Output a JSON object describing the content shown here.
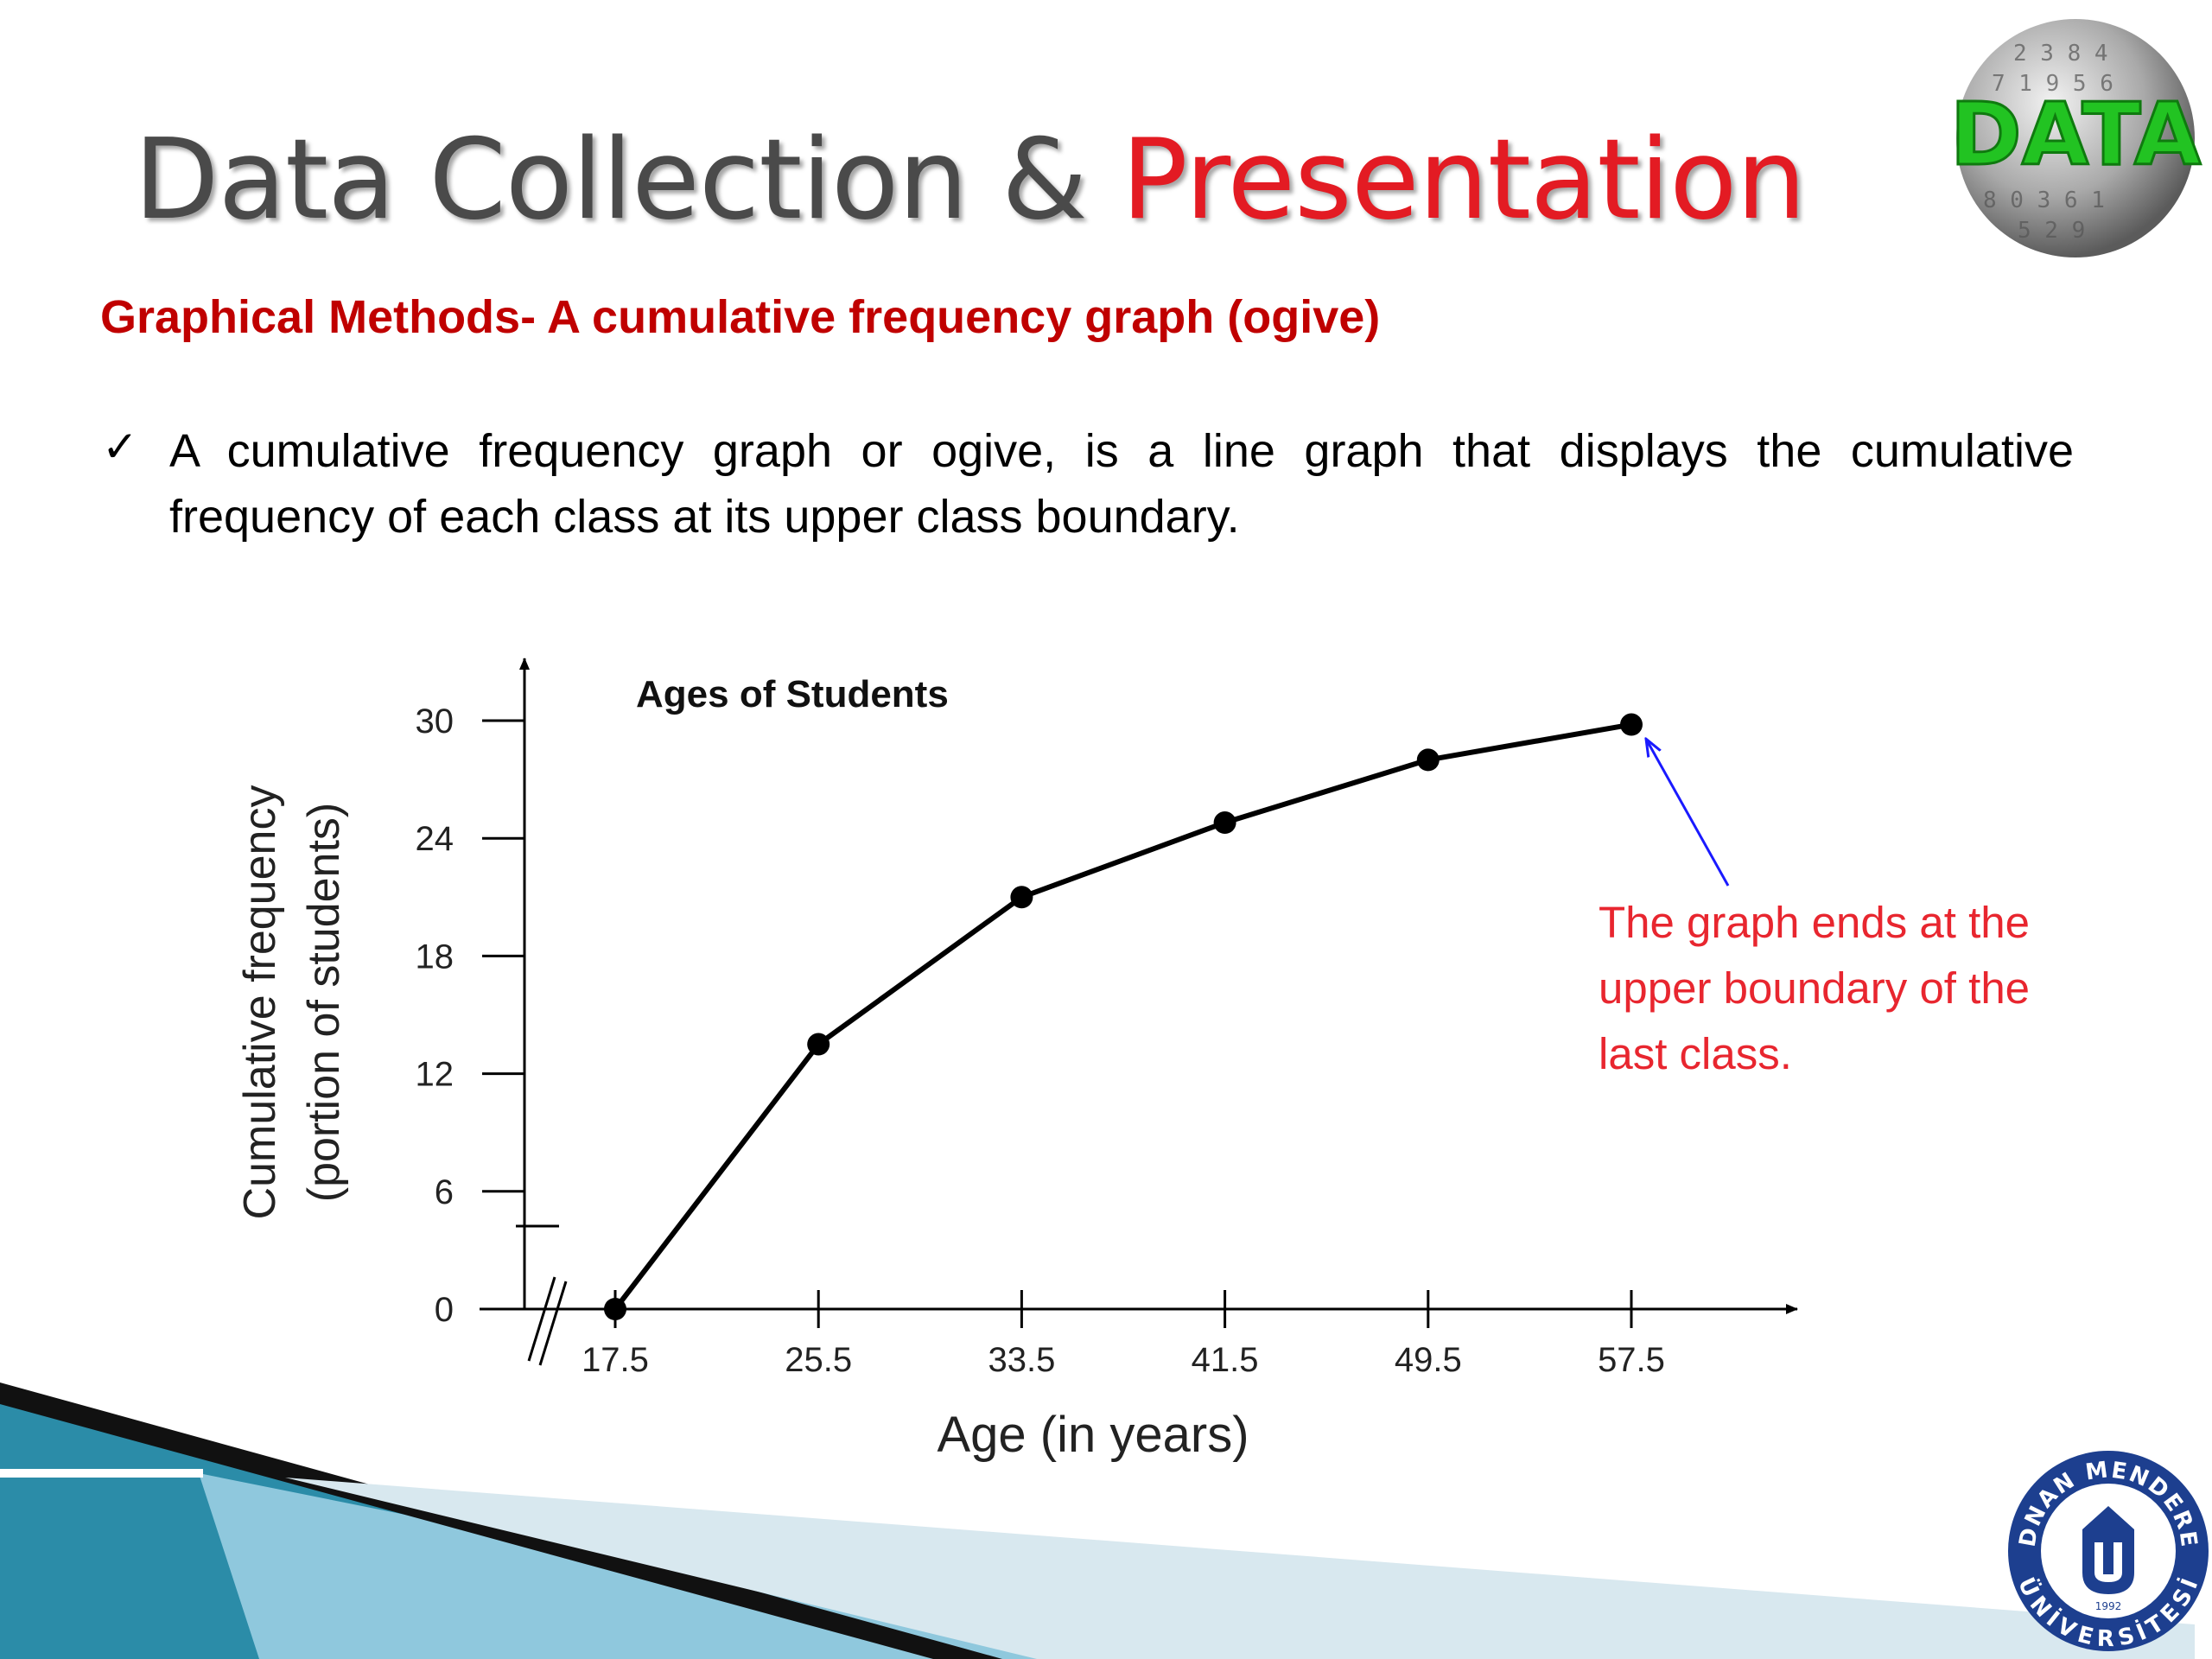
{
  "slide": {
    "title_main": "Data Collection & ",
    "title_accent": "Presentation",
    "subtitle": "Graphical Methods- A cumulative frequency graph (ogive)",
    "bullet_mark": "✓",
    "bullet_text": "A cumulative frequency graph or ogive, is a line graph that displays the cumulative frequency of each class at its upper class boundary."
  },
  "logos": {
    "data_ball_text": "DATA",
    "university_name_top": "ADNAN MENDERES",
    "university_name_bottom": "ÜNİVERSİTESİ",
    "university_year": "1992"
  },
  "annotation": {
    "text": "The graph ends at the upper boundary of the last class."
  },
  "colors": {
    "title_gray": "#4a4a4a",
    "title_accent": "#e31b23",
    "subtitle_red": "#c00000",
    "annotation_red": "#e8262f",
    "arrow_blue": "#1a1aff",
    "data_green": "#22c322",
    "university_blue": "#1d3f8f"
  },
  "chart_data": {
    "type": "line",
    "title": "Ages of Students",
    "xlabel": "Age (in years)",
    "ylabel": [
      "Cumulative frequency",
      "(portion of students)"
    ],
    "x": [
      17.5,
      25.5,
      33.5,
      41.5,
      49.5,
      57.5
    ],
    "x_tick_labels": [
      "17.5",
      "25.5",
      "33.5",
      "41.5",
      "49.5",
      "57.5"
    ],
    "y_ticks": [
      0,
      6,
      12,
      18,
      24,
      30
    ],
    "y_tick_labels": [
      "0",
      "6",
      "12",
      "18",
      "24",
      "30"
    ],
    "series": [
      {
        "values": [
          0,
          13.5,
          21,
          24.8,
          28,
          29.8
        ]
      }
    ],
    "xlim": [
      17.5,
      57.5
    ],
    "ylim": [
      0,
      30
    ],
    "grid": false,
    "axis_break": true
  }
}
